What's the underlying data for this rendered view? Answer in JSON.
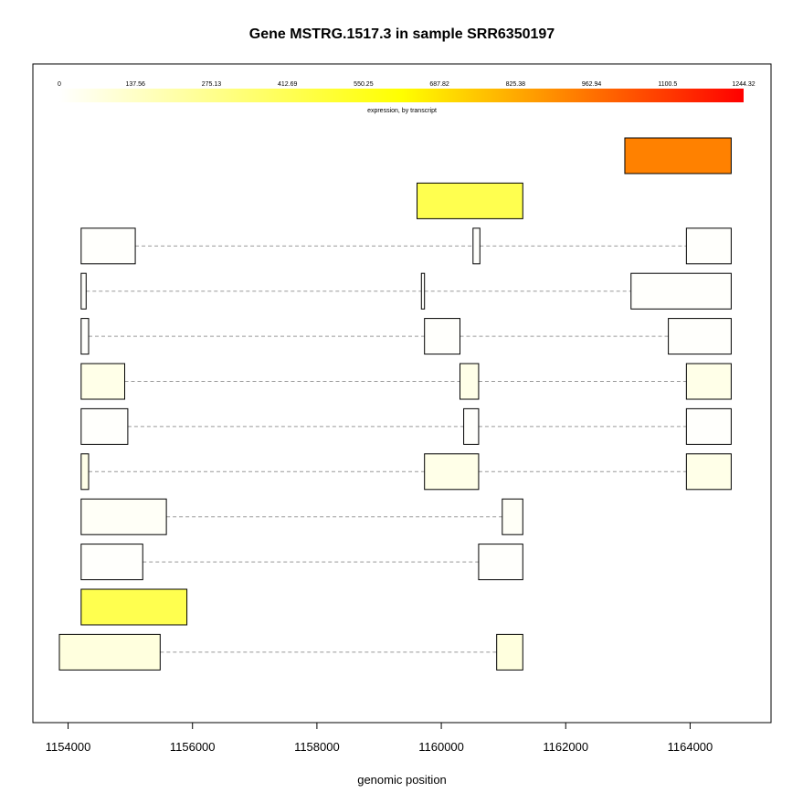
{
  "chart_data": {
    "type": "gene-structure",
    "title": "Gene MSTRG.1517.3 in sample SRR6350197",
    "xlabel": "genomic position",
    "xlim": [
      1153860,
      1164860
    ],
    "x_ticks": [
      1154000,
      1156000,
      1158000,
      1160000,
      1162000,
      1164000
    ],
    "x_tick_labels": [
      "1154000",
      "1156000",
      "1158000",
      "1160000",
      "1162000",
      "1164000"
    ],
    "legend": {
      "caption": "expression, by transcript",
      "min": 0,
      "max": 1244.32,
      "tick_labels": [
        "0",
        "137.56",
        "275.13",
        "412.69",
        "550.25",
        "687.82",
        "825.38",
        "962.94",
        "1100.5",
        "1244.32"
      ],
      "color_low": "#ffffff",
      "color_mid": "#ffff00",
      "color_high": "#ff0000"
    },
    "transcripts": [
      {
        "expression": 930,
        "exons": [
          [
            1162950,
            1164660
          ]
        ]
      },
      {
        "expression": 430,
        "exons": [
          [
            1159610,
            1161310
          ]
        ]
      },
      {
        "expression": 8,
        "exons": [
          [
            1154210,
            1155080
          ],
          [
            1160510,
            1160620
          ],
          [
            1163940,
            1164660
          ]
        ]
      },
      {
        "expression": 8,
        "exons": [
          [
            1154210,
            1154290
          ],
          [
            1159680,
            1159730
          ],
          [
            1163050,
            1164660
          ]
        ]
      },
      {
        "expression": 8,
        "exons": [
          [
            1154210,
            1154330
          ],
          [
            1159730,
            1160300
          ],
          [
            1163650,
            1164660
          ]
        ]
      },
      {
        "expression": 55,
        "exons": [
          [
            1154210,
            1154910
          ],
          [
            1160300,
            1160600
          ],
          [
            1163940,
            1164660
          ]
        ]
      },
      {
        "expression": 8,
        "exons": [
          [
            1154210,
            1154960
          ],
          [
            1160360,
            1160600
          ],
          [
            1163940,
            1164660
          ]
        ]
      },
      {
        "expression": 55,
        "exons": [
          [
            1154210,
            1154330
          ],
          [
            1159730,
            1160600
          ],
          [
            1163940,
            1164660
          ]
        ]
      },
      {
        "expression": 20,
        "exons": [
          [
            1154210,
            1155580
          ],
          [
            1160980,
            1161310
          ]
        ]
      },
      {
        "expression": 8,
        "exons": [
          [
            1154210,
            1155200
          ],
          [
            1160600,
            1161310
          ]
        ]
      },
      {
        "expression": 430,
        "exons": [
          [
            1154210,
            1155910
          ]
        ]
      },
      {
        "expression": 80,
        "exons": [
          [
            1153860,
            1155480
          ],
          [
            1160890,
            1161310
          ]
        ]
      }
    ]
  }
}
